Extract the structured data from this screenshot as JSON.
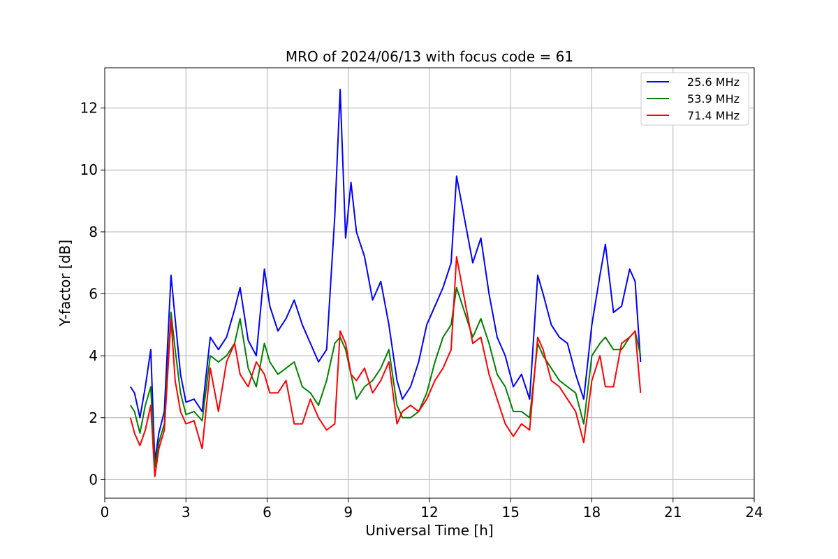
{
  "chart_data": {
    "type": "line",
    "title": "MRO of 2024/06/13 with focus code = 61",
    "xlabel": "Universal Time [h]",
    "ylabel": "Y-factor [dB]",
    "xlim": [
      0,
      24
    ],
    "ylim": [
      -0.6,
      13.3
    ],
    "xticks": [
      0,
      3,
      6,
      9,
      12,
      15,
      18,
      21,
      24
    ],
    "yticks": [
      0,
      2,
      4,
      6,
      8,
      10,
      12
    ],
    "grid": true,
    "legend_position": "top-right",
    "series": [
      {
        "name": "25.6 MHz",
        "color": "#0000ff",
        "x": [
          0.95,
          1.1,
          1.3,
          1.5,
          1.7,
          1.85,
          2.0,
          2.2,
          2.45,
          2.6,
          2.8,
          3.0,
          3.3,
          3.6,
          3.9,
          4.2,
          4.5,
          4.8,
          5.0,
          5.3,
          5.6,
          5.9,
          6.1,
          6.4,
          6.7,
          7.0,
          7.3,
          7.6,
          7.9,
          8.2,
          8.5,
          8.7,
          8.9,
          9.1,
          9.3,
          9.6,
          9.9,
          10.2,
          10.5,
          10.8,
          11.0,
          11.3,
          11.6,
          11.9,
          12.2,
          12.5,
          12.8,
          13.0,
          13.3,
          13.6,
          13.9,
          14.2,
          14.5,
          14.8,
          15.1,
          15.4,
          15.7,
          16.0,
          16.2,
          16.5,
          16.8,
          17.1,
          17.4,
          17.7,
          18.0,
          18.3,
          18.5,
          18.8,
          19.1,
          19.4,
          19.6,
          19.8
        ],
        "values": [
          3.0,
          2.8,
          2.0,
          3.0,
          4.2,
          0.6,
          1.5,
          2.2,
          6.6,
          5.2,
          3.4,
          2.5,
          2.6,
          2.2,
          4.6,
          4.2,
          4.6,
          5.5,
          6.2,
          4.5,
          4.0,
          6.8,
          5.6,
          4.8,
          5.2,
          5.8,
          5.0,
          4.4,
          3.8,
          4.2,
          8.5,
          12.6,
          7.8,
          9.6,
          8.0,
          7.2,
          5.8,
          6.4,
          5.0,
          3.2,
          2.6,
          3.0,
          3.8,
          5.0,
          5.6,
          6.2,
          7.0,
          9.8,
          8.4,
          7.0,
          7.8,
          6.0,
          4.6,
          4.0,
          3.0,
          3.4,
          2.6,
          6.6,
          6.0,
          5.0,
          4.6,
          4.4,
          3.4,
          2.6,
          5.0,
          6.6,
          7.6,
          5.4,
          5.6,
          6.8,
          6.4,
          3.8
        ]
      },
      {
        "name": "53.9 MHz",
        "color": "#008000",
        "x": [
          0.95,
          1.1,
          1.3,
          1.5,
          1.7,
          1.85,
          2.0,
          2.2,
          2.45,
          2.6,
          2.8,
          3.0,
          3.3,
          3.6,
          3.9,
          4.2,
          4.5,
          4.8,
          5.0,
          5.3,
          5.6,
          5.9,
          6.1,
          6.4,
          6.7,
          7.0,
          7.3,
          7.6,
          7.9,
          8.2,
          8.5,
          8.7,
          8.9,
          9.1,
          9.3,
          9.6,
          9.9,
          10.2,
          10.5,
          10.8,
          11.0,
          11.3,
          11.6,
          11.9,
          12.2,
          12.5,
          12.8,
          13.0,
          13.3,
          13.6,
          13.9,
          14.2,
          14.5,
          14.8,
          15.1,
          15.4,
          15.7,
          16.0,
          16.2,
          16.5,
          16.8,
          17.1,
          17.4,
          17.7,
          18.0,
          18.3,
          18.5,
          18.8,
          19.1,
          19.4,
          19.6,
          19.8
        ],
        "values": [
          2.4,
          2.2,
          1.5,
          2.4,
          3.0,
          0.4,
          1.2,
          1.8,
          5.4,
          4.2,
          2.8,
          2.1,
          2.2,
          1.9,
          4.0,
          3.8,
          4.0,
          4.4,
          5.2,
          3.6,
          3.0,
          4.4,
          3.8,
          3.4,
          3.6,
          3.8,
          3.0,
          2.8,
          2.4,
          3.2,
          4.4,
          4.6,
          4.2,
          3.4,
          2.6,
          3.0,
          3.2,
          3.6,
          4.2,
          2.4,
          2.0,
          2.0,
          2.2,
          2.8,
          3.8,
          4.6,
          5.0,
          6.2,
          5.4,
          4.6,
          5.2,
          4.4,
          3.4,
          3.0,
          2.2,
          2.2,
          2.0,
          4.4,
          4.0,
          3.6,
          3.2,
          3.0,
          2.8,
          1.8,
          4.0,
          4.4,
          4.6,
          4.2,
          4.2,
          4.6,
          4.8,
          4.0
        ]
      },
      {
        "name": "71.4 MHz",
        "color": "#ff0000",
        "x": [
          0.95,
          1.1,
          1.3,
          1.5,
          1.7,
          1.85,
          2.0,
          2.2,
          2.45,
          2.6,
          2.8,
          3.0,
          3.3,
          3.6,
          3.9,
          4.2,
          4.5,
          4.8,
          5.0,
          5.3,
          5.6,
          5.9,
          6.1,
          6.4,
          6.7,
          7.0,
          7.3,
          7.6,
          7.9,
          8.2,
          8.5,
          8.7,
          8.9,
          9.1,
          9.3,
          9.6,
          9.9,
          10.2,
          10.5,
          10.8,
          11.0,
          11.3,
          11.6,
          11.9,
          12.2,
          12.5,
          12.8,
          13.0,
          13.3,
          13.6,
          13.9,
          14.2,
          14.5,
          14.8,
          15.1,
          15.4,
          15.7,
          16.0,
          16.2,
          16.5,
          16.8,
          17.1,
          17.4,
          17.7,
          18.0,
          18.3,
          18.5,
          18.8,
          19.1,
          19.4,
          19.6,
          19.8
        ],
        "values": [
          2.0,
          1.5,
          1.1,
          1.6,
          2.4,
          0.1,
          1.0,
          1.6,
          5.2,
          3.2,
          2.2,
          1.8,
          1.9,
          1.0,
          3.6,
          2.2,
          3.8,
          4.4,
          3.4,
          3.0,
          3.8,
          3.4,
          2.8,
          2.8,
          3.2,
          1.8,
          1.8,
          2.6,
          2.0,
          1.6,
          1.8,
          4.8,
          4.4,
          3.4,
          3.2,
          3.6,
          2.8,
          3.2,
          3.8,
          1.8,
          2.2,
          2.4,
          2.2,
          2.6,
          3.2,
          3.6,
          4.2,
          7.2,
          5.8,
          4.4,
          4.6,
          3.4,
          2.6,
          1.8,
          1.4,
          1.8,
          1.6,
          4.6,
          4.2,
          3.2,
          3.0,
          2.6,
          2.2,
          1.2,
          3.2,
          4.0,
          3.0,
          3.0,
          4.4,
          4.6,
          4.8,
          2.8
        ]
      }
    ]
  }
}
